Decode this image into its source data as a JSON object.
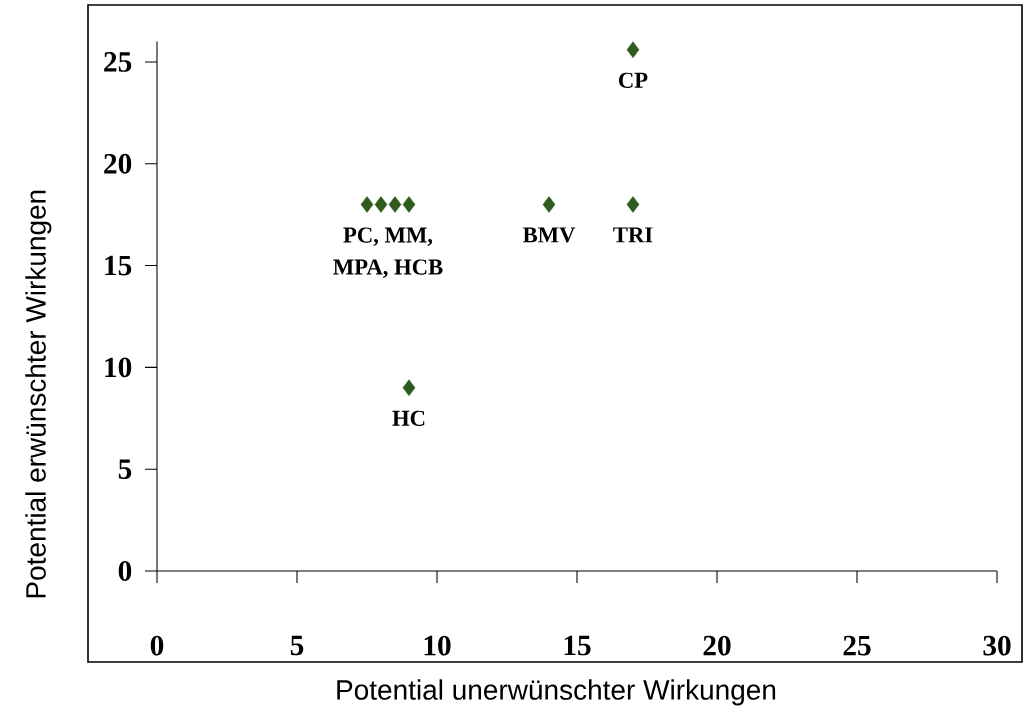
{
  "chart_data": {
    "type": "scatter",
    "xlabel": "Potential unerwünschter Wirkungen",
    "ylabel": "Potential erwünschter Wirkungen",
    "x": [
      7.5,
      8,
      8.5,
      9,
      9,
      14,
      17,
      17
    ],
    "series": [
      {
        "color": "#2e5a1c",
        "values": [
          18,
          18,
          18,
          18,
          9,
          18,
          18,
          25.6
        ]
      }
    ],
    "marker": "diamond",
    "xlim": [
      0,
      30
    ],
    "ylim": [
      0,
      26
    ],
    "xticks": [
      0,
      5,
      10,
      15,
      20,
      25,
      30
    ],
    "yticks": [
      0,
      5,
      10,
      15,
      20,
      25
    ],
    "annotations": [
      {
        "text": "PC,  MM,",
        "x": 8.25,
        "y": 18
      },
      {
        "text": "MPA, HCB",
        "x": 8.25,
        "y": 18
      },
      {
        "text": "HC",
        "x": 9,
        "y": 9
      },
      {
        "text": "BMV",
        "x": 14,
        "y": 18
      },
      {
        "text": "TRI",
        "x": 17,
        "y": 18
      },
      {
        "text": "CP",
        "x": 17,
        "y": 25.6
      }
    ]
  }
}
